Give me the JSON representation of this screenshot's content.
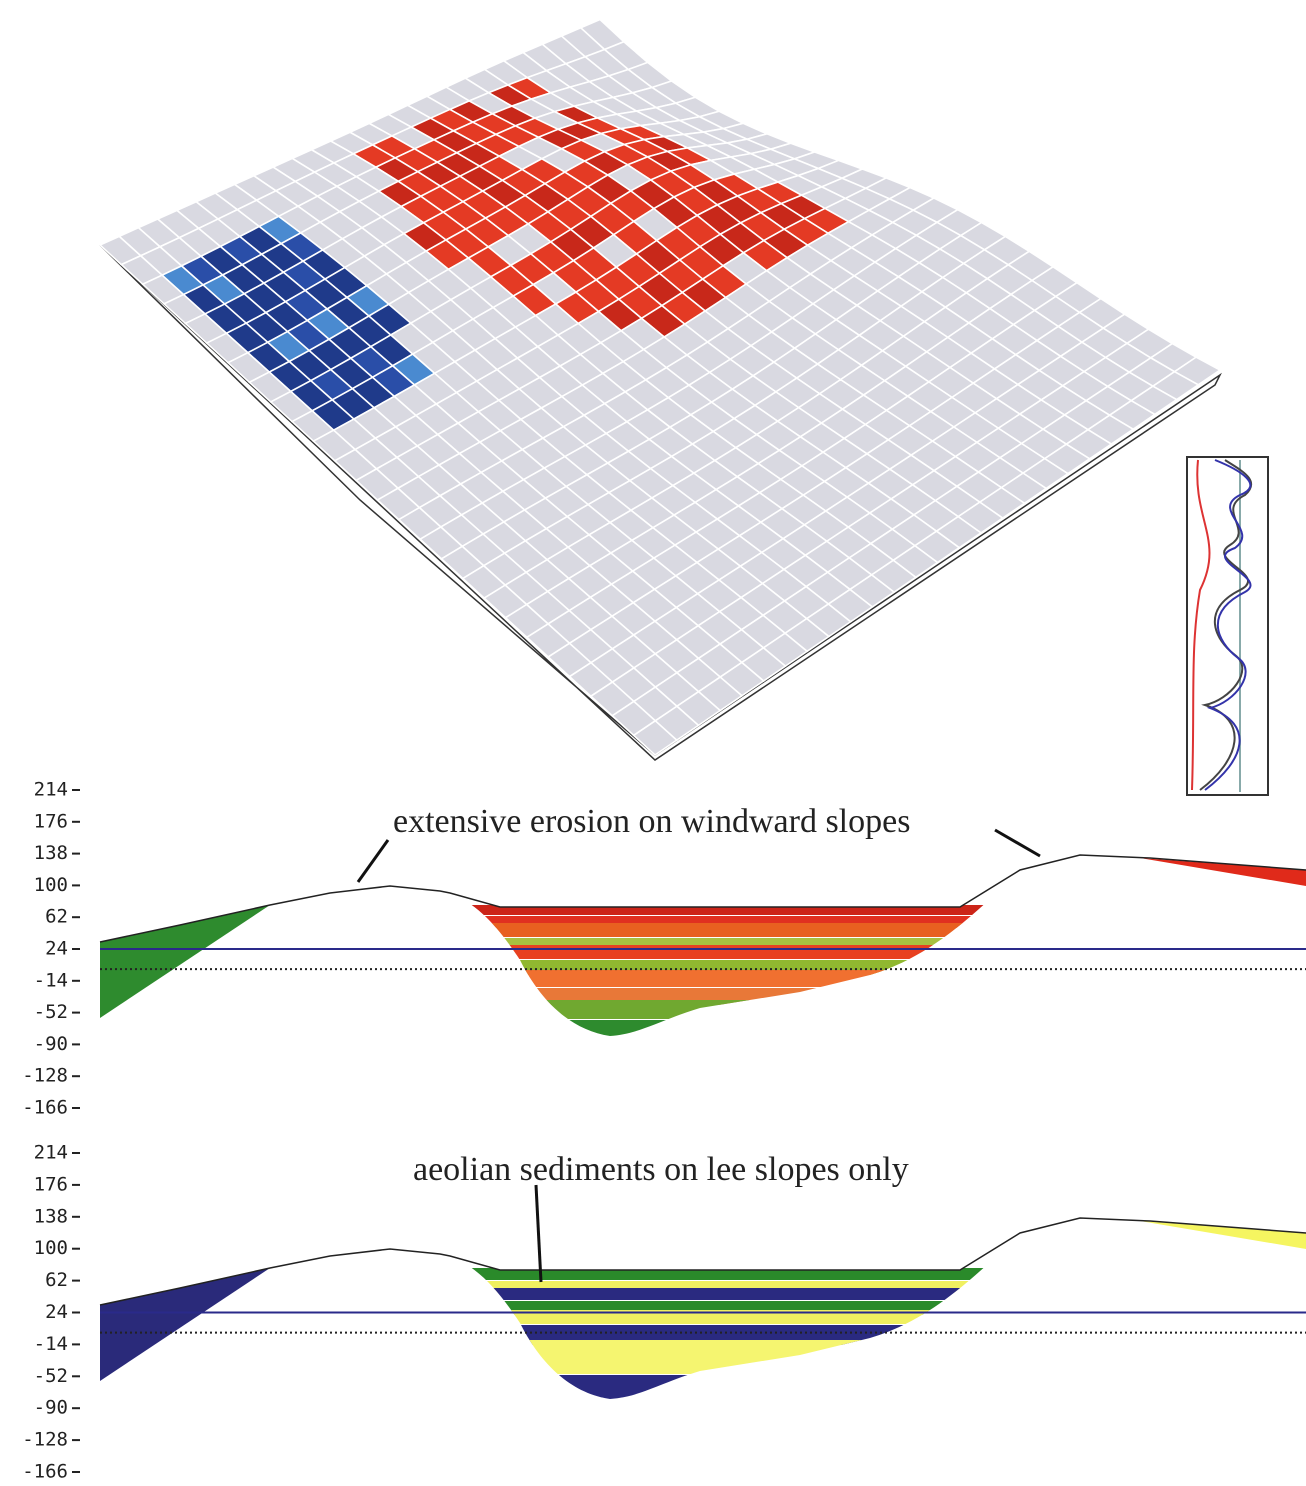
{
  "cross_sections": [
    {
      "annotation": "extensive erosion on windward slopes",
      "ylim": [
        -166,
        214
      ],
      "yticks": [
        214,
        176,
        138,
        100,
        62,
        24,
        -14,
        -52,
        -90,
        -128,
        -166
      ],
      "water_level": 24,
      "base_level": 0
    },
    {
      "annotation": "aeolian sediments on lee slopes only",
      "ylim": [
        -166,
        214
      ],
      "yticks": [
        214,
        176,
        138,
        100,
        62,
        24,
        -14,
        -52,
        -90,
        -128,
        -166
      ],
      "water_level": 24,
      "base_level": 0
    }
  ]
}
